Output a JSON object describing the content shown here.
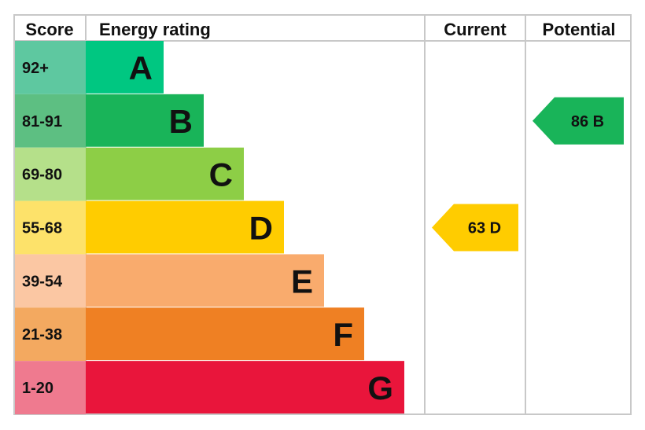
{
  "chart_data": {
    "type": "bar",
    "headers": {
      "score": "Score",
      "rating": "Energy rating",
      "current": "Current",
      "potential": "Potential"
    },
    "bands": [
      {
        "letter": "A",
        "range": "92+",
        "color": "#00c781",
        "score_color": "#5ec8a0"
      },
      {
        "letter": "B",
        "range": "81-91",
        "color": "#19b459",
        "score_color": "#5dbf82"
      },
      {
        "letter": "C",
        "range": "69-80",
        "color": "#8dce46",
        "score_color": "#b5e08a"
      },
      {
        "letter": "D",
        "range": "55-68",
        "color": "#ffcc00",
        "score_color": "#fde26a"
      },
      {
        "letter": "E",
        "range": "39-54",
        "color": "#f9ab6d",
        "score_color": "#fbc7a3"
      },
      {
        "letter": "F",
        "range": "21-38",
        "color": "#ef8023",
        "score_color": "#f3a960"
      },
      {
        "letter": "G",
        "range": "1-20",
        "color": "#e9153b",
        "score_color": "#ef7a8f"
      }
    ],
    "current": {
      "score": 63,
      "band": "D",
      "label": "63 D",
      "color": "#ffcc00"
    },
    "potential": {
      "score": 86,
      "band": "B",
      "label": "86 B",
      "color": "#19b459"
    }
  }
}
